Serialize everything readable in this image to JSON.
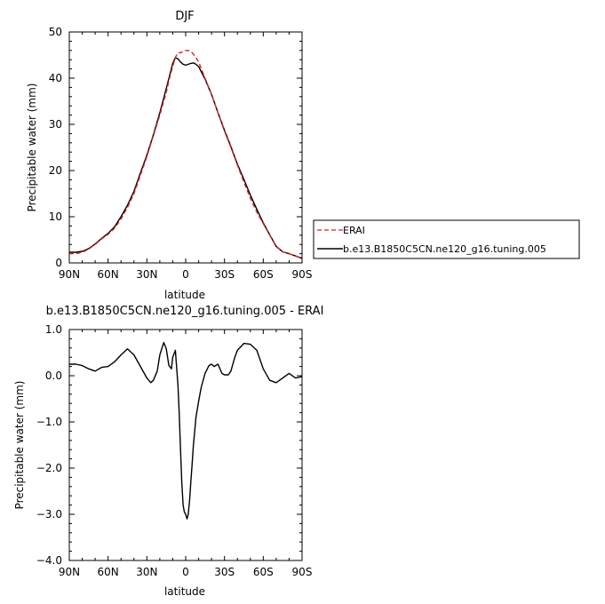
{
  "chart_data": [
    {
      "type": "line",
      "title": "DJF",
      "xlabel": "latitude",
      "ylabel": "Precipitable water  (mm)",
      "xlim": [
        90,
        -90
      ],
      "ylim": [
        0,
        50
      ],
      "x_ticks": [
        90,
        60,
        30,
        0,
        -30,
        -60,
        -90
      ],
      "x_tick_labels": [
        "90N",
        "60N",
        "30N",
        "0",
        "30S",
        "60S",
        "90S"
      ],
      "y_ticks": [
        0,
        10,
        20,
        30,
        40,
        50
      ],
      "y_tick_labels": [
        "0",
        "10",
        "20",
        "30",
        "40",
        "50"
      ],
      "legend": {
        "placement": "right",
        "entries": [
          "ERAI",
          "b.e13.B1850C5CN.ne120_g16.tuning.005"
        ]
      },
      "series": [
        {
          "name": "ERAI",
          "color": "#dd2222",
          "dash": "dashed",
          "x": [
            90,
            85,
            80,
            75,
            70,
            65,
            60,
            55,
            50,
            45,
            40,
            35,
            30,
            25,
            20,
            15,
            12,
            10,
            8,
            6,
            4,
            2,
            0,
            -2,
            -4,
            -6,
            -8,
            -10,
            -15,
            -20,
            -25,
            -30,
            -35,
            -40,
            -45,
            -50,
            -55,
            -60,
            -65,
            -70,
            -75,
            -80,
            -85,
            -90
          ],
          "values": [
            2.0,
            2.0,
            2.3,
            3.0,
            4.0,
            5.2,
            6.2,
            7.5,
            9.5,
            12.0,
            15.0,
            19.0,
            23.0,
            27.5,
            32.0,
            37.0,
            40.5,
            42.5,
            44.5,
            45.5,
            45.5,
            45.8,
            46.0,
            46.0,
            45.8,
            45.2,
            44.5,
            43.5,
            40.0,
            36.5,
            32.5,
            28.5,
            25.0,
            21.2,
            17.5,
            14.0,
            11.0,
            8.5,
            6.0,
            3.5,
            2.4,
            2.0,
            1.5,
            1.0
          ]
        },
        {
          "name": "b.e13.B1850C5CN.ne120_g16.tuning.005",
          "color": "#000000",
          "dash": "solid",
          "x": [
            90,
            85,
            80,
            75,
            70,
            65,
            60,
            55,
            50,
            45,
            40,
            35,
            30,
            25,
            20,
            15,
            12,
            10,
            8,
            6,
            4,
            2,
            0,
            -2,
            -4,
            -6,
            -8,
            -10,
            -15,
            -20,
            -25,
            -30,
            -35,
            -40,
            -45,
            -50,
            -55,
            -60,
            -65,
            -70,
            -75,
            -80,
            -85,
            -90
          ],
          "values": [
            2.3,
            2.3,
            2.5,
            3.1,
            4.1,
            5.3,
            6.4,
            7.8,
            10.0,
            12.5,
            15.5,
            19.5,
            23.3,
            27.7,
            32.5,
            37.8,
            41.0,
            43.2,
            44.4,
            44.2,
            43.5,
            43.0,
            42.8,
            43.0,
            43.2,
            43.3,
            43.0,
            42.5,
            39.8,
            36.5,
            32.5,
            28.7,
            25.2,
            21.4,
            18.1,
            14.7,
            11.6,
            8.7,
            6.1,
            3.6,
            2.4,
            2.0,
            1.5,
            1.0
          ]
        }
      ]
    },
    {
      "type": "line",
      "title": "b.e13.B1850C5CN.ne120_g16.tuning.005 - ERAI",
      "xlabel": "latitude",
      "ylabel": "Precipitable water  (mm)",
      "xlim": [
        90,
        -90
      ],
      "ylim": [
        -4.0,
        1.0
      ],
      "x_ticks": [
        90,
        60,
        30,
        0,
        -30,
        -60,
        -90
      ],
      "x_tick_labels": [
        "90N",
        "60N",
        "30N",
        "0",
        "30S",
        "60S",
        "90S"
      ],
      "y_ticks": [
        -4.0,
        -3.0,
        -2.0,
        -1.0,
        0.0,
        1.0
      ],
      "y_tick_labels": [
        "−4.0",
        "−3.0",
        "−2.0",
        "−1.0",
        "0.0",
        "1.0"
      ],
      "series": [
        {
          "color": "#000000",
          "dash": "solid",
          "x": [
            90,
            85,
            80,
            75,
            70,
            65,
            60,
            55,
            50,
            45,
            40,
            35,
            30,
            27,
            25,
            22,
            20,
            17,
            15,
            13,
            11,
            10,
            8,
            6,
            5,
            4,
            3,
            2,
            1,
            0,
            -1,
            -2,
            -3,
            -4,
            -5,
            -6,
            -8,
            -10,
            -12,
            -15,
            -18,
            -20,
            -22,
            -25,
            -28,
            -30,
            -33,
            -35,
            -38,
            -40,
            -45,
            -50,
            -55,
            -60,
            -65,
            -70,
            -75,
            -80,
            -85,
            -90
          ],
          "values": [
            0.25,
            0.25,
            0.22,
            0.15,
            0.1,
            0.18,
            0.2,
            0.3,
            0.45,
            0.58,
            0.45,
            0.2,
            -0.05,
            -0.15,
            -0.1,
            0.1,
            0.45,
            0.72,
            0.58,
            0.22,
            0.15,
            0.4,
            0.55,
            -0.2,
            -0.8,
            -1.6,
            -2.3,
            -2.8,
            -2.95,
            -3.0,
            -3.1,
            -3.0,
            -2.7,
            -2.3,
            -1.9,
            -1.5,
            -0.9,
            -0.55,
            -0.25,
            0.05,
            0.22,
            0.25,
            0.2,
            0.25,
            0.05,
            0.02,
            0.02,
            0.1,
            0.4,
            0.55,
            0.7,
            0.68,
            0.55,
            0.15,
            -0.1,
            -0.15,
            -0.05,
            0.05,
            -0.05,
            -0.02
          ]
        }
      ]
    }
  ]
}
